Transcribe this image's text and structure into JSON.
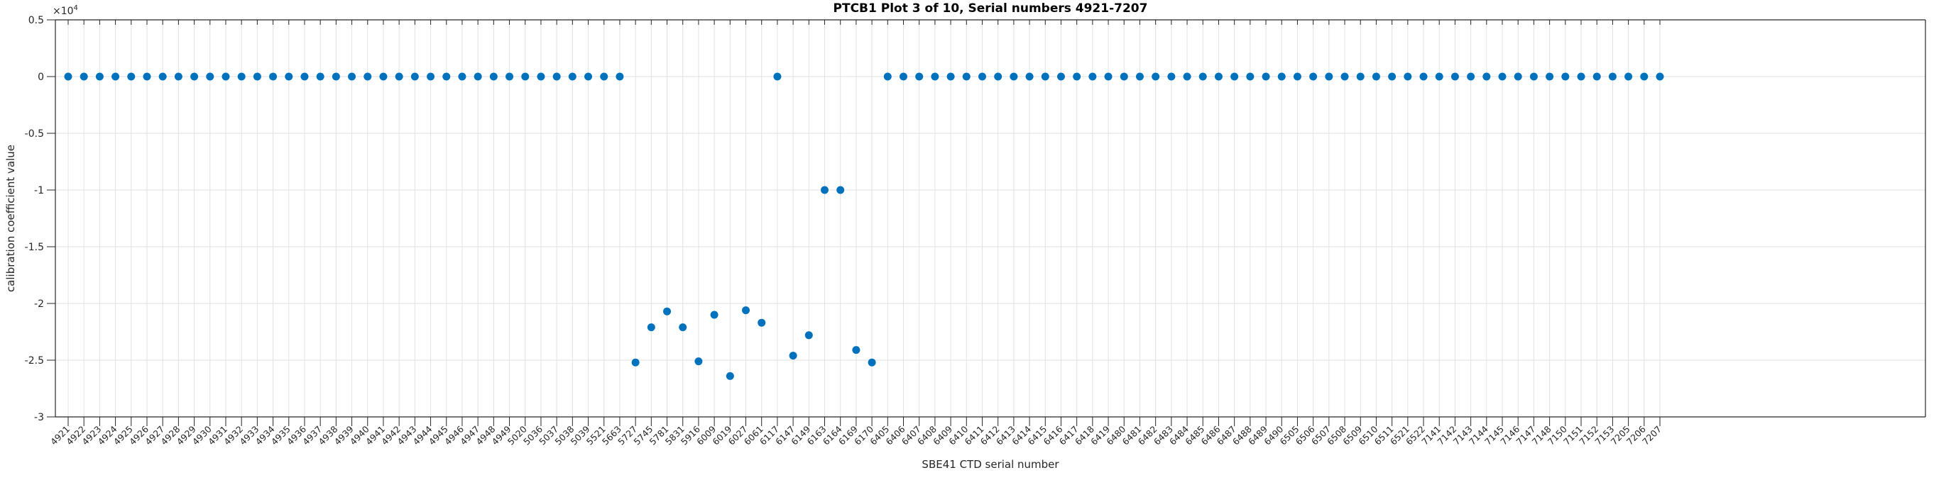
{
  "chart_data": {
    "type": "scatter",
    "title": "PTCB1 Plot 3 of 10, Serial numbers 4921-7207",
    "xlabel": "SBE41 CTD serial number",
    "ylabel": "calibration coefficient value",
    "y_axis_multiplier": {
      "base": "×10",
      "exponent": "4"
    },
    "legend": null,
    "grid": true,
    "marker_color": "#0072BD",
    "grid_color": "#e2e2e2",
    "axis_color": "#262626",
    "background_color": "#ffffff",
    "ylim": [
      -30000,
      5000
    ],
    "yticks": [
      {
        "value": 5000,
        "label": "0.5"
      },
      {
        "value": 0,
        "label": "0"
      },
      {
        "value": -5000,
        "label": "-0.5"
      },
      {
        "value": -10000,
        "label": "-1"
      },
      {
        "value": -15000,
        "label": "-1.5"
      },
      {
        "value": -20000,
        "label": "-2"
      },
      {
        "value": -25000,
        "label": "-2.5"
      },
      {
        "value": -30000,
        "label": "-3"
      }
    ],
    "x_categories": [
      "4921",
      "4922",
      "4923",
      "4924",
      "4925",
      "4926",
      "4927",
      "4928",
      "4929",
      "4930",
      "4931",
      "4932",
      "4933",
      "4934",
      "4935",
      "4936",
      "4937",
      "4938",
      "4939",
      "4940",
      "4941",
      "4942",
      "4943",
      "4944",
      "4945",
      "4946",
      "4947",
      "4948",
      "4949",
      "5020",
      "5036",
      "5037",
      "5038",
      "5039",
      "5521",
      "5663",
      "5727",
      "5745",
      "5781",
      "5831",
      "5916",
      "6009",
      "6019",
      "6027",
      "6061",
      "6117",
      "6147",
      "6149",
      "6163",
      "6164",
      "6169",
      "6170",
      "6405",
      "6406",
      "6407",
      "6408",
      "6409",
      "6410",
      "6411",
      "6412",
      "6413",
      "6414",
      "6415",
      "6416",
      "6417",
      "6418",
      "6419",
      "6480",
      "6481",
      "6482",
      "6483",
      "6484",
      "6485",
      "6486",
      "6487",
      "6488",
      "6489",
      "6490",
      "6505",
      "6506",
      "6507",
      "6508",
      "6509",
      "6510",
      "6511",
      "6521",
      "6522",
      "7141",
      "7142",
      "7143",
      "7144",
      "7145",
      "7146",
      "7147",
      "7148",
      "7150",
      "7151",
      "7152",
      "7153",
      "7205",
      "7206",
      "7207"
    ],
    "values": [
      0,
      0,
      0,
      0,
      0,
      0,
      0,
      0,
      0,
      0,
      0,
      0,
      0,
      0,
      0,
      0,
      0,
      0,
      0,
      0,
      0,
      0,
      0,
      0,
      0,
      0,
      0,
      0,
      0,
      0,
      0,
      0,
      0,
      0,
      0,
      0,
      -25200,
      -22100,
      -20700,
      -22100,
      -25100,
      -21000,
      -26400,
      -20600,
      -21700,
      0,
      -24600,
      -22800,
      -10000,
      -10000,
      -24100,
      -25200,
      0,
      0,
      0,
      0,
      0,
      0,
      0,
      0,
      0,
      0,
      0,
      0,
      0,
      0,
      0,
      0,
      0,
      0,
      0,
      0,
      0,
      0,
      0,
      0,
      0,
      0,
      0,
      0,
      0,
      0,
      0,
      0,
      0,
      0,
      0,
      0,
      0,
      0,
      0,
      0,
      0,
      0,
      0,
      0,
      0,
      0,
      0,
      0,
      0,
      0
    ]
  }
}
